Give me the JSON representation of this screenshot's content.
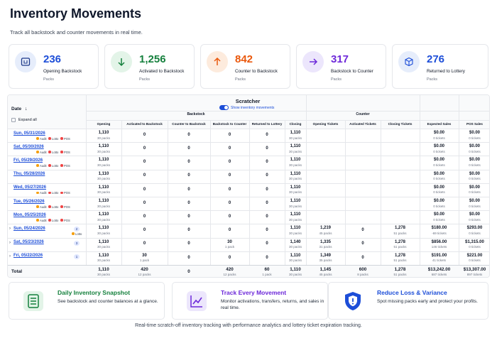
{
  "header": {
    "title": "Inventory Movements",
    "subtitle": "Track all backstock and counter movements in real time."
  },
  "stats": [
    {
      "value": "236",
      "label": "Opening Backstock",
      "unit": "Packs"
    },
    {
      "value": "1,256",
      "label": "Activated to Backstock",
      "unit": "Packs"
    },
    {
      "value": "842",
      "label": "Counter to Backstock",
      "unit": "Packs"
    },
    {
      "value": "317",
      "label": "Backstock to Counter",
      "unit": "Packs"
    },
    {
      "value": "276",
      "label": "Returned to Lottery",
      "unit": "Packs"
    }
  ],
  "table": {
    "title": "Scratcher",
    "toggle": "Show inventory movements",
    "date_header": "Date",
    "sort_icon": "↓",
    "expand_all": "Expand all",
    "groups": [
      "Backstock",
      "Counter"
    ],
    "columns": [
      "Opening",
      "Activated to Backstock",
      "Counter to Backstock",
      "Backstock to Counter",
      "Returned to Lottery",
      "Closing",
      "Opening Tickets",
      "Activated Tickets",
      "Closing Tickets",
      "Expected Sales",
      "POS Sales"
    ],
    "rows": [
      {
        "date": "Sun, 05/31/2026",
        "badges": [
          "Audit",
          "Lotto",
          "POS"
        ],
        "cells": [
          [
            "1,110",
            "30 packs"
          ],
          "0",
          "0",
          "0",
          "0",
          [
            "1,110",
            "30 packs"
          ],
          null,
          null,
          null,
          [
            "$0.00",
            "0 tickets"
          ],
          [
            "$0.00",
            "0 tickets"
          ]
        ]
      },
      {
        "date": "Sat, 05/30/2026",
        "badges": [
          "Audit",
          "Lotto",
          "POS"
        ],
        "cells": [
          [
            "1,110",
            "30 packs"
          ],
          "0",
          "0",
          "0",
          "0",
          [
            "1,110",
            "30 packs"
          ],
          null,
          null,
          null,
          [
            "$0.00",
            "0 tickets"
          ],
          [
            "$0.00",
            "0 tickets"
          ]
        ]
      },
      {
        "date": "Fri, 05/29/2026",
        "badges": [
          "Audit",
          "Lotto",
          "POS"
        ],
        "cells": [
          [
            "1,110",
            "30 packs"
          ],
          "0",
          "0",
          "0",
          "0",
          [
            "1,110",
            "30 packs"
          ],
          null,
          null,
          null,
          [
            "$0.00",
            "0 tickets"
          ],
          [
            "$0.00",
            "0 tickets"
          ]
        ]
      },
      {
        "date": "Thu, 05/28/2026",
        "badges": [],
        "cells": [
          [
            "1,110",
            "30 packs"
          ],
          "0",
          "0",
          "0",
          "0",
          [
            "1,110",
            "30 packs"
          ],
          null,
          null,
          null,
          [
            "$0.00",
            "0 tickets"
          ],
          [
            "$0.00",
            "0 tickets"
          ]
        ]
      },
      {
        "date": "Wed, 05/27/2026",
        "badges": [
          "Audit",
          "Lotto",
          "POS"
        ],
        "cells": [
          [
            "1,110",
            "30 packs"
          ],
          "0",
          "0",
          "0",
          "0",
          [
            "1,110",
            "30 packs"
          ],
          null,
          null,
          null,
          [
            "$0.00",
            "0 tickets"
          ],
          [
            "$0.00",
            "0 tickets"
          ]
        ]
      },
      {
        "date": "Tue, 05/26/2026",
        "badges": [
          "Audit",
          "Lotto",
          "POS"
        ],
        "cells": [
          [
            "1,110",
            "30 packs"
          ],
          "0",
          "0",
          "0",
          "0",
          [
            "1,110",
            "30 packs"
          ],
          null,
          null,
          null,
          [
            "$0.00",
            "0 tickets"
          ],
          [
            "$0.00",
            "0 tickets"
          ]
        ]
      },
      {
        "date": "Mon, 05/25/2026",
        "badges": [
          "Audit",
          "Lotto",
          "POS"
        ],
        "cells": [
          [
            "1,110",
            "30 packs"
          ],
          "0",
          "0",
          "0",
          "0",
          [
            "1,110",
            "30 packs"
          ],
          null,
          null,
          null,
          [
            "$0.00",
            "0 tickets"
          ],
          [
            "$0.00",
            "0 tickets"
          ]
        ]
      },
      {
        "date": "Sun, 05/24/2026",
        "count": "2",
        "badges": [
          "Lotto"
        ],
        "cells": [
          [
            "1,110",
            "30 packs"
          ],
          "0",
          "0",
          "0",
          "0",
          [
            "1,110",
            "30 packs"
          ],
          [
            "1,219",
            "45 packs"
          ],
          "0",
          [
            "1,278",
            "51 packs"
          ],
          [
            "$180.00",
            "-69 tickets"
          ],
          [
            "$293.00",
            "0 tickets"
          ]
        ]
      },
      {
        "date": "Sat, 05/23/2026",
        "count": "3",
        "badges": [],
        "cells": [
          [
            "1,110",
            "30 packs"
          ],
          "0",
          "0",
          [
            "30",
            "1 pack"
          ],
          "0",
          [
            "1,140",
            "30 packs"
          ],
          [
            "1,335",
            "31 packs"
          ],
          "0",
          [
            "1,278",
            "51 packs"
          ],
          [
            "$856.00",
            "146 tickets"
          ],
          [
            "$1,315.00",
            "0 tickets"
          ]
        ]
      },
      {
        "date": "Fri, 05/22/2026",
        "count": "1",
        "badges": [],
        "cells": [
          [
            "1,110",
            "30 packs"
          ],
          [
            "30",
            "1 pack"
          ],
          "0",
          "0",
          "0",
          [
            "1,110",
            "30 packs"
          ],
          [
            "1,349",
            "35 packs"
          ],
          "0",
          [
            "1,278",
            "51 packs"
          ],
          [
            "$191.00",
            "41 tickets"
          ],
          [
            "$221.00",
            "0 tickets"
          ]
        ]
      }
    ],
    "total": {
      "label": "Total",
      "cells": [
        [
          "1,110",
          "30 packs"
        ],
        [
          "420",
          "12 packs"
        ],
        "0",
        [
          "420",
          "12 packs"
        ],
        [
          "60",
          "1 pack"
        ],
        [
          "1,110",
          "30 packs"
        ],
        [
          "1,145",
          "45 packs"
        ],
        [
          "600",
          "8 packs"
        ],
        [
          "1,278",
          "51 packs"
        ],
        [
          "$13,242.00",
          "687 tickets"
        ],
        [
          "$13,307.00",
          "897 tickets"
        ]
      ]
    }
  },
  "features": [
    {
      "title": "Daily Inventory Snapshot",
      "text": "See backstock and counter balances at a glance."
    },
    {
      "title": "Track Every Movement",
      "text": "Monitor activations, transfers, returns, and sales in real time."
    },
    {
      "title": "Reduce Loss & Variance",
      "text": "Spot missing packs early and protect your profits."
    }
  ],
  "footer": "Real-time scratch-off inventory tracking with performance analytics and lottery ticket expiration tracking."
}
